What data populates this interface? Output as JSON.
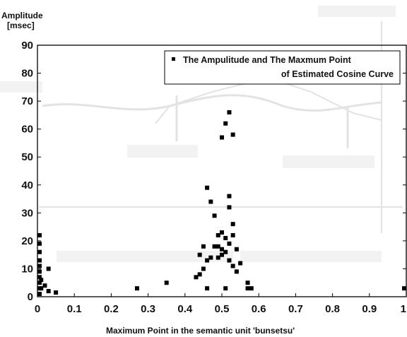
{
  "chart_data": {
    "type": "scatter",
    "ylabel_line1": "Amplitude",
    "ylabel_line2": "[msec]",
    "xlabel": "Maximum Point in the semantic unit 'bunsetsu'",
    "legend": {
      "label_line1": "The Ampulitude and The Maxmum Point",
      "label_line2": "of Estimated Cosine Curve",
      "position": "top-right"
    },
    "xlim": [
      0,
      1
    ],
    "ylim": [
      0,
      90
    ],
    "x_ticks": [
      {
        "v": 0,
        "label": "0"
      },
      {
        "v": 0.1,
        "label": "0.1"
      },
      {
        "v": 0.2,
        "label": "0.2"
      },
      {
        "v": 0.3,
        "label": "0.3"
      },
      {
        "v": 0.4,
        "label": "0.4"
      },
      {
        "v": 0.5,
        "label": "0.5"
      },
      {
        "v": 0.6,
        "label": "0.6"
      },
      {
        "v": 0.7,
        "label": "0.7"
      },
      {
        "v": 0.8,
        "label": "0.8"
      },
      {
        "v": 0.9,
        "label": "0.9"
      },
      {
        "v": 1,
        "label": "1"
      }
    ],
    "y_ticks": [
      {
        "v": 0,
        "label": "0"
      },
      {
        "v": 10,
        "label": "10"
      },
      {
        "v": 20,
        "label": "20"
      },
      {
        "v": 30,
        "label": "30"
      },
      {
        "v": 40,
        "label": "40"
      },
      {
        "v": 50,
        "label": "50"
      },
      {
        "v": 60,
        "label": "60"
      },
      {
        "v": 70,
        "label": "70"
      },
      {
        "v": 80,
        "label": "80"
      },
      {
        "v": 90,
        "label": "90"
      }
    ],
    "grid": false,
    "marker_color": "#000000",
    "points": [
      {
        "x": 0.0,
        "y": 22
      },
      {
        "x": 0.0,
        "y": 19
      },
      {
        "x": 0.0,
        "y": 16
      },
      {
        "x": 0.0,
        "y": 13
      },
      {
        "x": 0.0,
        "y": 11
      },
      {
        "x": 0.0,
        "y": 9
      },
      {
        "x": 0.0,
        "y": 7
      },
      {
        "x": 0.0,
        "y": 5
      },
      {
        "x": 0.0,
        "y": 3
      },
      {
        "x": 0.0,
        "y": 1
      },
      {
        "x": 0.01,
        "y": 6
      },
      {
        "x": 0.01,
        "y": 3
      },
      {
        "x": 0.02,
        "y": 4
      },
      {
        "x": 0.03,
        "y": 10
      },
      {
        "x": 0.03,
        "y": 2
      },
      {
        "x": 0.05,
        "y": 1.5
      },
      {
        "x": 0.27,
        "y": 3
      },
      {
        "x": 0.35,
        "y": 5
      },
      {
        "x": 0.43,
        "y": 7
      },
      {
        "x": 0.44,
        "y": 15
      },
      {
        "x": 0.44,
        "y": 8
      },
      {
        "x": 0.45,
        "y": 18
      },
      {
        "x": 0.45,
        "y": 10
      },
      {
        "x": 0.46,
        "y": 39
      },
      {
        "x": 0.46,
        "y": 13
      },
      {
        "x": 0.46,
        "y": 3
      },
      {
        "x": 0.47,
        "y": 34
      },
      {
        "x": 0.47,
        "y": 14
      },
      {
        "x": 0.48,
        "y": 29
      },
      {
        "x": 0.48,
        "y": 18
      },
      {
        "x": 0.49,
        "y": 22
      },
      {
        "x": 0.49,
        "y": 18
      },
      {
        "x": 0.49,
        "y": 14
      },
      {
        "x": 0.5,
        "y": 57
      },
      {
        "x": 0.5,
        "y": 23
      },
      {
        "x": 0.5,
        "y": 17
      },
      {
        "x": 0.5,
        "y": 15
      },
      {
        "x": 0.51,
        "y": 62
      },
      {
        "x": 0.51,
        "y": 21
      },
      {
        "x": 0.51,
        "y": 16
      },
      {
        "x": 0.51,
        "y": 3
      },
      {
        "x": 0.52,
        "y": 66
      },
      {
        "x": 0.52,
        "y": 36
      },
      {
        "x": 0.52,
        "y": 32
      },
      {
        "x": 0.52,
        "y": 19
      },
      {
        "x": 0.52,
        "y": 13
      },
      {
        "x": 0.53,
        "y": 58
      },
      {
        "x": 0.53,
        "y": 26
      },
      {
        "x": 0.53,
        "y": 22
      },
      {
        "x": 0.53,
        "y": 11
      },
      {
        "x": 0.54,
        "y": 17
      },
      {
        "x": 0.54,
        "y": 9
      },
      {
        "x": 0.55,
        "y": 12
      },
      {
        "x": 0.57,
        "y": 5
      },
      {
        "x": 0.57,
        "y": 3
      },
      {
        "x": 0.58,
        "y": 3
      },
      {
        "x": 1.0,
        "y": 3
      }
    ]
  }
}
